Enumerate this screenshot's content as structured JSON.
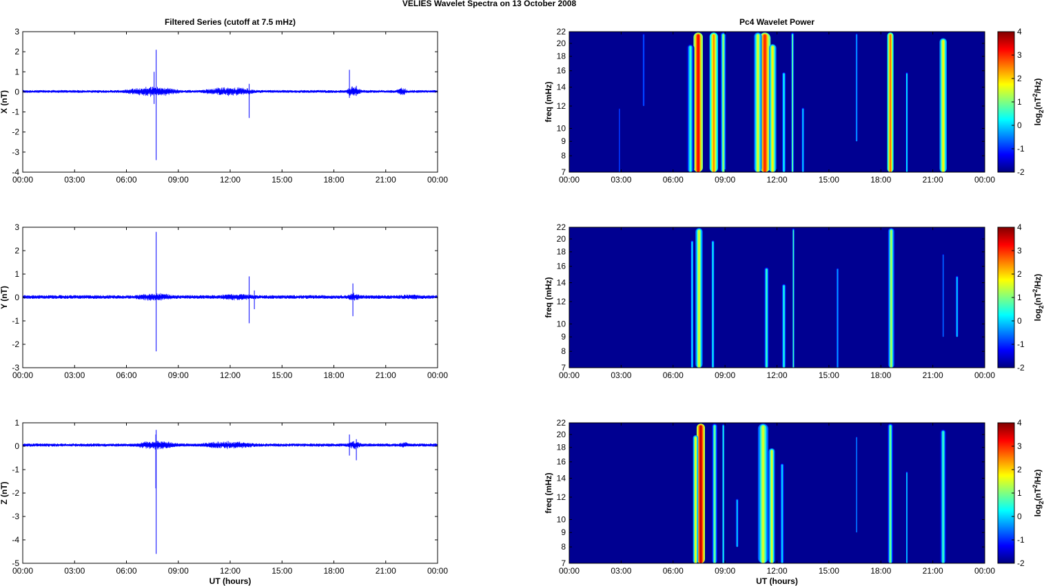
{
  "figure_title": "VELIES Wavelet Spectra on 13 October   2008",
  "chart_data": [
    {
      "type": "line",
      "id": "x-series",
      "title": "Filtered Series (cutoff at 7.5 mHz)",
      "ylabel": "X (nT)",
      "xlabel": "",
      "xlim": [
        0,
        24
      ],
      "ylim": [
        -4,
        3
      ],
      "xticks": [
        "00:00",
        "03:00",
        "06:00",
        "09:00",
        "12:00",
        "15:00",
        "18:00",
        "21:00",
        "00:00"
      ],
      "yticks": [
        -4,
        -3,
        -2,
        -1,
        0,
        1,
        2,
        3
      ],
      "baseline": 0.02,
      "noise": 0.07,
      "activity": [
        {
          "t0": 5.8,
          "t1": 9.2,
          "amp": 0.28
        },
        {
          "t0": 10.3,
          "t1": 13.6,
          "amp": 0.25
        },
        {
          "t0": 18.7,
          "t1": 19.6,
          "amp": 0.28
        },
        {
          "t0": 21.6,
          "t1": 22.3,
          "amp": 0.22
        }
      ],
      "spikes": [
        {
          "t": 7.72,
          "max": 2.1,
          "min": -3.4
        },
        {
          "t": 7.6,
          "max": 1.0,
          "min": -0.6
        },
        {
          "t": 13.1,
          "max": 0.4,
          "min": -1.3
        },
        {
          "t": 18.9,
          "max": 1.1,
          "min": -0.3
        },
        {
          "t": 19.3,
          "max": 0.3,
          "min": -0.2
        }
      ],
      "color": "#0000ff"
    },
    {
      "type": "line",
      "id": "y-series",
      "title": "",
      "ylabel": "Y (nT)",
      "xlabel": "",
      "xlim": [
        0,
        24
      ],
      "ylim": [
        -3,
        3
      ],
      "xticks": [
        "00:00",
        "03:00",
        "06:00",
        "09:00",
        "12:00",
        "15:00",
        "18:00",
        "21:00",
        "00:00"
      ],
      "yticks": [
        -3,
        -2,
        -1,
        0,
        1,
        2,
        3
      ],
      "baseline": 0.02,
      "noise": 0.08,
      "activity": [
        {
          "t0": 6.5,
          "t1": 8.8,
          "amp": 0.18
        },
        {
          "t0": 11.2,
          "t1": 13.6,
          "amp": 0.15
        },
        {
          "t0": 18.8,
          "t1": 19.5,
          "amp": 0.2
        },
        {
          "t0": 21.8,
          "t1": 23.0,
          "amp": 0.12
        }
      ],
      "spikes": [
        {
          "t": 7.72,
          "max": 2.8,
          "min": -2.3
        },
        {
          "t": 13.1,
          "max": 0.9,
          "min": -1.1
        },
        {
          "t": 19.1,
          "max": 0.6,
          "min": -0.8
        },
        {
          "t": 13.4,
          "max": 0.3,
          "min": -0.5
        }
      ],
      "color": "#0000ff"
    },
    {
      "type": "line",
      "id": "z-series",
      "title": "",
      "ylabel": "Z (nT)",
      "xlabel": "UT (hours)",
      "xlim": [
        0,
        24
      ],
      "ylim": [
        -5,
        1
      ],
      "xticks": [
        "00:00",
        "03:00",
        "06:00",
        "09:00",
        "12:00",
        "15:00",
        "18:00",
        "21:00",
        "00:00"
      ],
      "yticks": [
        -5,
        -4,
        -3,
        -2,
        -1,
        0,
        1
      ],
      "baseline": 0.05,
      "noise": 0.07,
      "activity": [
        {
          "t0": 6.5,
          "t1": 9.0,
          "amp": 0.22
        },
        {
          "t0": 10.2,
          "t1": 13.6,
          "amp": 0.18
        },
        {
          "t0": 18.8,
          "t1": 19.6,
          "amp": 0.2
        },
        {
          "t0": 21.8,
          "t1": 22.3,
          "amp": 0.15
        }
      ],
      "spikes": [
        {
          "t": 7.72,
          "max": 0.7,
          "min": -4.6
        },
        {
          "t": 7.7,
          "max": 0.5,
          "min": -1.8
        },
        {
          "t": 19.3,
          "max": 0.3,
          "min": -0.6
        },
        {
          "t": 18.9,
          "max": 0.5,
          "min": -0.4
        }
      ],
      "color": "#0000ff"
    },
    {
      "type": "heatmap",
      "id": "x-power",
      "title": "Pc4 Wavelet Power",
      "ylabel": "freq (mHz)",
      "xlabel": "",
      "xlim": [
        0,
        24
      ],
      "ylim": [
        7,
        22
      ],
      "yscale": "log",
      "xticks": [
        "00:00",
        "03:00",
        "06:00",
        "09:00",
        "12:00",
        "15:00",
        "18:00",
        "21:00",
        "00:00"
      ],
      "yticks": [
        7,
        8,
        9,
        10,
        12,
        14,
        16,
        18,
        20,
        22
      ],
      "clim": [
        -2,
        4
      ],
      "bursts": [
        {
          "t": 7.45,
          "w": 0.18,
          "fmin": 7,
          "fmax": 22,
          "level": 3.3
        },
        {
          "t": 8.35,
          "w": 0.16,
          "fmin": 7,
          "fmax": 22,
          "level": 2.4
        },
        {
          "t": 7.0,
          "w": 0.15,
          "fmin": 7,
          "fmax": 20,
          "level": 0.5
        },
        {
          "t": 8.9,
          "w": 0.1,
          "fmin": 7,
          "fmax": 22,
          "level": 1.2
        },
        {
          "t": 11.3,
          "w": 0.22,
          "fmin": 7,
          "fmax": 22,
          "level": 3.0
        },
        {
          "t": 10.9,
          "w": 0.15,
          "fmin": 7,
          "fmax": 22,
          "level": 1.6
        },
        {
          "t": 11.75,
          "w": 0.14,
          "fmin": 7,
          "fmax": 20,
          "level": 1.8
        },
        {
          "t": 12.4,
          "w": 0.1,
          "fmin": 7,
          "fmax": 16,
          "level": 0.3
        },
        {
          "t": 12.9,
          "w": 0.06,
          "fmin": 7,
          "fmax": 22,
          "level": 0.8
        },
        {
          "t": 13.5,
          "w": 0.08,
          "fmin": 7,
          "fmax": 12,
          "level": 0.0
        },
        {
          "t": 18.55,
          "w": 0.12,
          "fmin": 7,
          "fmax": 22,
          "level": 2.6
        },
        {
          "t": 19.5,
          "w": 0.06,
          "fmin": 7,
          "fmax": 16,
          "level": 0.2
        },
        {
          "t": 21.6,
          "w": 0.14,
          "fmin": 7,
          "fmax": 21,
          "level": 1.8
        },
        {
          "t": 4.3,
          "w": 0.08,
          "fmin": 12,
          "fmax": 22,
          "level": -0.7
        },
        {
          "t": 2.9,
          "w": 0.05,
          "fmin": 7,
          "fmax": 12,
          "level": -0.9
        },
        {
          "t": 16.6,
          "w": 0.07,
          "fmin": 9,
          "fmax": 22,
          "level": -0.3
        }
      ]
    },
    {
      "type": "heatmap",
      "id": "y-power",
      "title": "",
      "ylabel": "freq (mHz)",
      "xlabel": "",
      "xlim": [
        0,
        24
      ],
      "ylim": [
        7,
        22
      ],
      "yscale": "log",
      "xticks": [
        "00:00",
        "03:00",
        "06:00",
        "09:00",
        "12:00",
        "15:00",
        "18:00",
        "21:00",
        "00:00"
      ],
      "yticks": [
        7,
        8,
        9,
        10,
        12,
        14,
        16,
        18,
        20,
        22
      ],
      "clim": [
        -2,
        4
      ],
      "bursts": [
        {
          "t": 7.5,
          "w": 0.14,
          "fmin": 7,
          "fmax": 22,
          "level": 1.6
        },
        {
          "t": 7.1,
          "w": 0.08,
          "fmin": 7,
          "fmax": 20,
          "level": 0.2
        },
        {
          "t": 8.3,
          "w": 0.08,
          "fmin": 7,
          "fmax": 20,
          "level": 0.3
        },
        {
          "t": 11.4,
          "w": 0.1,
          "fmin": 7,
          "fmax": 16,
          "level": 0.6
        },
        {
          "t": 12.4,
          "w": 0.1,
          "fmin": 7,
          "fmax": 14,
          "level": 0.4
        },
        {
          "t": 12.95,
          "w": 0.05,
          "fmin": 7,
          "fmax": 22,
          "level": 0.6
        },
        {
          "t": 15.5,
          "w": 0.08,
          "fmin": 7,
          "fmax": 16,
          "level": -0.3
        },
        {
          "t": 18.6,
          "w": 0.12,
          "fmin": 7,
          "fmax": 22,
          "level": 1.3
        },
        {
          "t": 21.6,
          "w": 0.06,
          "fmin": 9,
          "fmax": 18,
          "level": -0.6
        },
        {
          "t": 22.4,
          "w": 0.08,
          "fmin": 9,
          "fmax": 15,
          "level": 0.0
        }
      ]
    },
    {
      "type": "heatmap",
      "id": "z-power",
      "title": "",
      "ylabel": "freq (mHz)",
      "xlabel": "UT (hours)",
      "xlim": [
        0,
        24
      ],
      "ylim": [
        7,
        22
      ],
      "yscale": "log",
      "xticks": [
        "00:00",
        "03:00",
        "06:00",
        "09:00",
        "12:00",
        "15:00",
        "18:00",
        "21:00",
        "00:00"
      ],
      "yticks": [
        7,
        8,
        9,
        10,
        12,
        14,
        16,
        18,
        20,
        22
      ],
      "clim": [
        -2,
        4
      ],
      "bursts": [
        {
          "t": 7.6,
          "w": 0.16,
          "fmin": 7,
          "fmax": 22,
          "level": 3.6
        },
        {
          "t": 7.3,
          "w": 0.1,
          "fmin": 7,
          "fmax": 20,
          "level": 1.8
        },
        {
          "t": 8.4,
          "w": 0.1,
          "fmin": 7,
          "fmax": 22,
          "level": 1.0
        },
        {
          "t": 8.9,
          "w": 0.06,
          "fmin": 7,
          "fmax": 22,
          "level": 0.4
        },
        {
          "t": 9.7,
          "w": 0.08,
          "fmin": 8,
          "fmax": 12,
          "level": 0.0
        },
        {
          "t": 11.2,
          "w": 0.2,
          "fmin": 7,
          "fmax": 22,
          "level": 1.5
        },
        {
          "t": 11.7,
          "w": 0.12,
          "fmin": 7,
          "fmax": 18,
          "level": 1.6
        },
        {
          "t": 12.3,
          "w": 0.1,
          "fmin": 7,
          "fmax": 16,
          "level": 0.1
        },
        {
          "t": 18.55,
          "w": 0.1,
          "fmin": 7,
          "fmax": 22,
          "level": 1.0
        },
        {
          "t": 19.5,
          "w": 0.05,
          "fmin": 7,
          "fmax": 15,
          "level": 0.0
        },
        {
          "t": 21.6,
          "w": 0.12,
          "fmin": 7,
          "fmax": 21,
          "level": 0.6
        },
        {
          "t": 16.6,
          "w": 0.05,
          "fmin": 9,
          "fmax": 20,
          "level": -0.5
        }
      ]
    }
  ],
  "colorbar": {
    "ticks": [
      -2,
      -1,
      0,
      1,
      2,
      3,
      4
    ],
    "label": {
      "base": "log",
      "sub": "2",
      "mid": "(nT",
      "sup": "2",
      "end": "/Hz)"
    }
  }
}
